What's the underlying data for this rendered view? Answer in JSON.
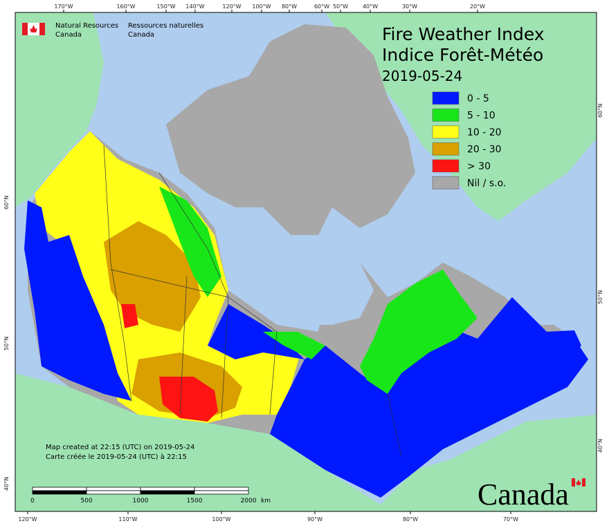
{
  "header": {
    "org_en": [
      "Natural Resources",
      "Canada"
    ],
    "org_fr": [
      "Ressources naturelles",
      "Canada"
    ]
  },
  "title": {
    "line1": "Fire Weather Index",
    "line2": "Indice Forêt-Météo",
    "date": "2019-05-24"
  },
  "legend": [
    {
      "label": "0 - 5",
      "color": "#0019ff"
    },
    {
      "label": "5 - 10",
      "color": "#19e619"
    },
    {
      "label": "10 - 20",
      "color": "#ffff19"
    },
    {
      "label": "20 - 30",
      "color": "#d9a000"
    },
    {
      "label": "> 30",
      "color": "#ff1414"
    },
    {
      "label": "Nil / s.o.",
      "color": "#a8a8a8"
    }
  ],
  "top_axis": [
    "170°W",
    "160°W",
    "150°W",
    "140°W",
    "120°W",
    "100°W",
    "80°W",
    "60°W",
    "50°W",
    "40°W",
    "30°W",
    "20°W"
  ],
  "bottom_axis": [
    "120°W",
    "110°W",
    "100°W",
    "90°W",
    "80°W",
    "70°W"
  ],
  "left_axis": [
    "60°N",
    "50°N",
    "40°N"
  ],
  "right_axis": [
    "60°N",
    "50°N",
    "40°N"
  ],
  "scale_bar": {
    "labels": [
      "0",
      "500",
      "1000",
      "1500",
      "2000"
    ],
    "unit": "km"
  },
  "notes": [
    "Map created at 22:15 (UTC) on 2019-05-24",
    "Carte créée le 2019-05-24 (UTC) à 22:15"
  ],
  "wordmark": "Canada"
}
